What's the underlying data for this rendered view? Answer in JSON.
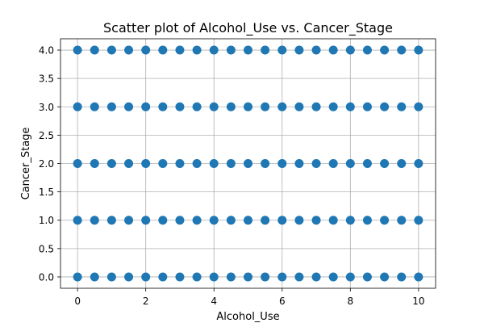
{
  "chart_data": {
    "type": "scatter",
    "title": "Scatter plot of Alcohol_Use vs. Cancer_Stage",
    "xlabel": "Alcohol_Use",
    "ylabel": "Cancer_Stage",
    "xlim": [
      -0.5,
      10.5
    ],
    "ylim": [
      -0.2,
      4.2
    ],
    "xticks": [
      0,
      2,
      4,
      6,
      8,
      10
    ],
    "xtick_labels": [
      "0",
      "2",
      "4",
      "6",
      "8",
      "10"
    ],
    "yticks": [
      0,
      0.5,
      1,
      1.5,
      2,
      2.5,
      3,
      3.5,
      4
    ],
    "ytick_labels": [
      "0.0",
      "0.5",
      "1.0",
      "1.5",
      "2.0",
      "2.5",
      "3.0",
      "3.5",
      "4.0"
    ],
    "grid": true,
    "marker_color": "#1f77b4",
    "series": [
      {
        "x": [
          0,
          0.5,
          1,
          1.5,
          2,
          2.5,
          3,
          3.5,
          4,
          4.5,
          5,
          5.5,
          6,
          6.5,
          7,
          7.5,
          8,
          8.5,
          9,
          9.5,
          10,
          0,
          0.5,
          1,
          1.5,
          2,
          2.5,
          3,
          3.5,
          4,
          4.5,
          5,
          5.5,
          6,
          6.5,
          7,
          7.5,
          8,
          8.5,
          9,
          9.5,
          10,
          0,
          0.5,
          1,
          1.5,
          2,
          2.5,
          3,
          3.5,
          4,
          4.5,
          5,
          5.5,
          6,
          6.5,
          7,
          7.5,
          8,
          8.5,
          9,
          9.5,
          10,
          0,
          0.5,
          1,
          1.5,
          2,
          2.5,
          3,
          3.5,
          4,
          4.5,
          5,
          5.5,
          6,
          6.5,
          7,
          7.5,
          8,
          8.5,
          9,
          9.5,
          10,
          0,
          0.5,
          1,
          1.5,
          2,
          2.5,
          3,
          3.5,
          4,
          4.5,
          5,
          5.5,
          6,
          6.5,
          7,
          7.5,
          8,
          8.5,
          9,
          9.5,
          10
        ],
        "y": [
          0,
          0,
          0,
          0,
          0,
          0,
          0,
          0,
          0,
          0,
          0,
          0,
          0,
          0,
          0,
          0,
          0,
          0,
          0,
          0,
          0,
          1,
          1,
          1,
          1,
          1,
          1,
          1,
          1,
          1,
          1,
          1,
          1,
          1,
          1,
          1,
          1,
          1,
          1,
          1,
          1,
          1,
          2,
          2,
          2,
          2,
          2,
          2,
          2,
          2,
          2,
          2,
          2,
          2,
          2,
          2,
          2,
          2,
          2,
          2,
          2,
          2,
          2,
          3,
          3,
          3,
          3,
          3,
          3,
          3,
          3,
          3,
          3,
          3,
          3,
          3,
          3,
          3,
          3,
          3,
          3,
          3,
          3,
          3,
          4,
          4,
          4,
          4,
          4,
          4,
          4,
          4,
          4,
          4,
          4,
          4,
          4,
          4,
          4,
          4,
          4,
          4,
          4,
          4,
          4
        ]
      }
    ]
  }
}
